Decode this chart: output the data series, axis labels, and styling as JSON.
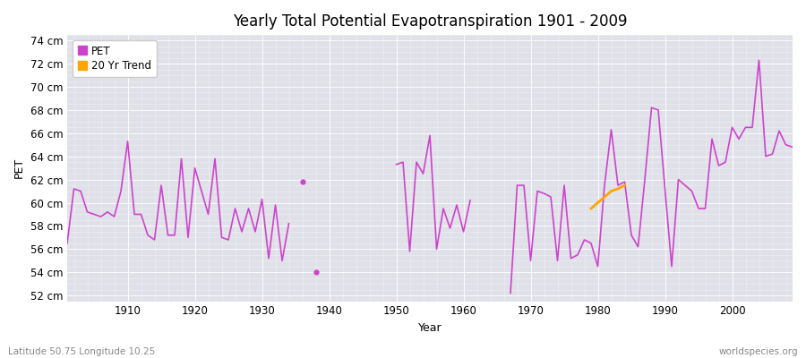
{
  "title": "Yearly Total Potential Evapotranspiration 1901 - 2009",
  "ylabel": "PET",
  "xlabel": "Year",
  "bg_color": "#ffffff",
  "plot_bg_color": "#e8e8ec",
  "line_color": "#cc44cc",
  "trend_color": "#ffa500",
  "ylim": [
    51.5,
    74.5
  ],
  "ytick_labels": [
    "52 cm",
    "54 cm",
    "56 cm",
    "58 cm",
    "60 cm",
    "62 cm",
    "64 cm",
    "66 cm",
    "68 cm",
    "70 cm",
    "72 cm",
    "74 cm"
  ],
  "ytick_values": [
    52,
    54,
    56,
    58,
    60,
    62,
    64,
    66,
    68,
    70,
    72,
    74
  ],
  "footer_left": "Latitude 50.75 Longitude 10.25",
  "footer_right": "worldspecies.org",
  "years": [
    1901,
    1902,
    1903,
    1904,
    1905,
    1906,
    1907,
    1908,
    1909,
    1910,
    1911,
    1912,
    1913,
    1914,
    1915,
    1916,
    1917,
    1918,
    1919,
    1920,
    1921,
    1922,
    1923,
    1924,
    1925,
    1926,
    1927,
    1928,
    1929,
    1930,
    1931,
    1932,
    1933,
    1934,
    1935,
    1936,
    1937,
    1938,
    1939,
    1940,
    1941,
    1942,
    1943,
    1944,
    1945,
    1946,
    1947,
    1948,
    1949,
    1950,
    1951,
    1952,
    1953,
    1954,
    1955,
    1956,
    1957,
    1958,
    1959,
    1960,
    1961,
    1962,
    1963,
    1964,
    1965,
    1966,
    1967,
    1968,
    1969,
    1970,
    1971,
    1972,
    1973,
    1974,
    1975,
    1976,
    1977,
    1978,
    1979,
    1980,
    1981,
    1982,
    1983,
    1984,
    1985,
    1986,
    1987,
    1988,
    1989,
    1990,
    1991,
    1992,
    1993,
    1994,
    1995,
    1996,
    1997,
    1998,
    1999,
    2000,
    2001,
    2002,
    2003,
    2004,
    2005,
    2006,
    2007,
    2008,
    2009
  ],
  "pet": [
    56.5,
    61.2,
    61.0,
    59.2,
    59.0,
    58.8,
    59.2,
    58.8,
    61.0,
    65.3,
    59.0,
    59.0,
    57.2,
    56.8,
    61.5,
    57.2,
    57.2,
    63.8,
    57.0,
    63.0,
    61.0,
    59.0,
    63.8,
    57.0,
    56.8,
    59.5,
    57.5,
    59.5,
    57.5,
    60.3,
    55.2,
    59.8,
    55.0,
    58.2,
    null,
    61.8,
    null,
    54.0,
    null,
    null,
    null,
    null,
    null,
    null,
    null,
    null,
    null,
    null,
    null,
    63.3,
    63.5,
    55.8,
    63.5,
    62.5,
    65.8,
    56.0,
    59.5,
    57.8,
    59.8,
    57.5,
    60.2,
    null,
    null,
    null,
    null,
    null,
    52.2,
    61.5,
    61.5,
    55.0,
    61.0,
    60.8,
    60.5,
    55.0,
    61.5,
    55.2,
    55.5,
    56.8,
    56.5,
    54.5,
    61.5,
    66.3,
    61.5,
    61.8,
    57.2,
    56.2,
    62.0,
    68.2,
    68.0,
    61.2,
    54.5,
    62.0,
    61.5,
    61.0,
    59.5,
    59.5,
    65.5,
    63.2,
    63.5,
    66.5,
    65.5,
    66.5,
    66.5,
    72.3,
    64.0,
    64.2,
    66.2,
    65.0,
    64.8
  ],
  "trend_years": [
    1979,
    1980,
    1981,
    1982,
    1983,
    1984
  ],
  "trend_values": [
    59.5,
    60.0,
    60.5,
    61.0,
    61.2,
    61.5
  ]
}
